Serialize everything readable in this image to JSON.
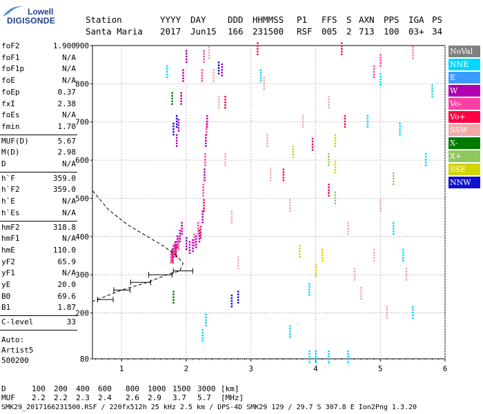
{
  "logo": {
    "top": "Lowell",
    "main": "DIGISONDE"
  },
  "header": {
    "row1": [
      "Station",
      "YYYY",
      "DAY",
      "DDD",
      "HHMMSS",
      "P1",
      "FFS",
      "S",
      "AXN",
      "PPS",
      "IGA",
      "PS"
    ],
    "row2": [
      "Santa Maria",
      "2017",
      "Jun15",
      "166",
      "231500",
      "RSF",
      "005",
      "2",
      "713",
      "100",
      "03+",
      "34"
    ]
  },
  "params": [
    {
      "label": "foF2",
      "value": "1.900"
    },
    {
      "label": "foF1",
      "value": "N/A"
    },
    {
      "label": "foF1p",
      "value": "N/A"
    },
    {
      "label": "foE",
      "value": "N/A"
    },
    {
      "label": "foEp",
      "value": "0.37"
    },
    {
      "label": "fxI",
      "value": "2.38"
    },
    {
      "label": "foEs",
      "value": "N/A"
    },
    {
      "label": "fmin",
      "value": "1.70"
    },
    {
      "label": "MUF(D)",
      "value": "5.67"
    },
    {
      "label": "M(D)",
      "value": "2.98"
    },
    {
      "label": "D",
      "value": "N/A"
    },
    {
      "label": "h`F",
      "value": "359.0"
    },
    {
      "label": "h`F2",
      "value": "359.0"
    },
    {
      "label": "h`E",
      "value": "N/A"
    },
    {
      "label": "h`Es",
      "value": "N/A"
    },
    {
      "label": "hmF2",
      "value": "318.8"
    },
    {
      "label": "hmF1",
      "value": "N/A"
    },
    {
      "label": "hmE",
      "value": "110.0"
    },
    {
      "label": "yF2",
      "value": "65.9"
    },
    {
      "label": "yF1",
      "value": "N/A"
    },
    {
      "label": "yE",
      "value": "20.0"
    },
    {
      "label": "B0",
      "value": "69.6"
    },
    {
      "label": "B1",
      "value": "1.87"
    },
    {
      "label": "C-level",
      "value": "33"
    }
  ],
  "auto": [
    "Auto:",
    "Artist5",
    "500200"
  ],
  "legend": [
    {
      "label": "NoVal",
      "color": "#808080"
    },
    {
      "label": "NNE",
      "color": "#00d8ff"
    },
    {
      "label": "E",
      "color": "#3b9cff"
    },
    {
      "label": "W",
      "color": "#b000b0"
    },
    {
      "label": "Vo-",
      "color": "#ff3fa5"
    },
    {
      "label": "Vo+",
      "color": "#ff0044"
    },
    {
      "label": "SSW",
      "color": "#f0a8a8"
    },
    {
      "label": "X-",
      "color": "#007a00"
    },
    {
      "label": "X+",
      "color": "#8ec85a"
    },
    {
      "label": "SSE",
      "color": "#d4d400"
    },
    {
      "label": "NNW",
      "color": "#1010d0"
    }
  ],
  "bottom": {
    "d_label": "D",
    "d_values": [
      "100",
      "200",
      "400",
      "600",
      "800",
      "1000",
      "1500",
      "3000",
      "[km]"
    ],
    "muf_label": "MUF",
    "muf_values": [
      "2.2",
      "2.2",
      "2.3",
      "2.4",
      "2.6",
      "2.9",
      "3.7",
      "5.7",
      "[MHz]"
    ],
    "footer": "SMK29_2017166231500.RSF / 220fx512h 25 kHz 2.5 km / DPS-4D SMK29 129 / 29.7 S 307.8 E Ion2Png 1.3.20"
  },
  "chart_data": {
    "type": "scatter",
    "title": "",
    "xlabel": "",
    "ylabel": "",
    "xlim": [
      0.55,
      6.0
    ],
    "ylim": [
      80,
      900
    ],
    "x_ticks": [
      1,
      2,
      3,
      4,
      5,
      6
    ],
    "y_ticks": [
      80,
      200,
      300,
      400,
      500,
      600,
      700,
      800,
      900
    ],
    "series": [
      {
        "name": "W",
        "color": "#b000b0",
        "points": [
          [
            1.78,
            350
          ],
          [
            1.8,
            360
          ],
          [
            1.83,
            370
          ],
          [
            1.86,
            385
          ],
          [
            1.9,
            400
          ],
          [
            1.93,
            420
          ],
          [
            2.0,
            380
          ],
          [
            2.05,
            370
          ],
          [
            2.1,
            375
          ],
          [
            2.15,
            385
          ],
          [
            2.2,
            400
          ],
          [
            2.25,
            450
          ],
          [
            2.28,
            560
          ],
          [
            2.3,
            650
          ],
          [
            2.32,
            700
          ],
          [
            1.85,
            650
          ],
          [
            1.88,
            690
          ],
          [
            1.92,
            760
          ],
          [
            1.95,
            820
          ],
          [
            2.0,
            870
          ],
          [
            2.55,
            835
          ]
        ]
      },
      {
        "name": "Vo-",
        "color": "#ff3fa5",
        "points": [
          [
            1.76,
            345
          ],
          [
            1.82,
            365
          ],
          [
            1.88,
            380
          ],
          [
            2.12,
            390
          ],
          [
            2.18,
            420
          ],
          [
            2.26,
            520
          ],
          [
            2.29,
            600
          ],
          [
            2.31,
            680
          ],
          [
            2.24,
            820
          ],
          [
            2.27,
            870
          ],
          [
            4.9,
            830
          ],
          [
            5.0,
            860
          ]
        ]
      },
      {
        "name": "Vo+",
        "color": "#ff0044",
        "points": [
          [
            1.79,
            345
          ],
          [
            1.84,
            360
          ],
          [
            2.22,
            410
          ],
          [
            2.27,
            480
          ],
          [
            2.6,
            750
          ],
          [
            3.1,
            890
          ],
          [
            4.4,
            890
          ],
          [
            5.5,
            880
          ],
          [
            4.45,
            700
          ],
          [
            3.95,
            640
          ],
          [
            3.5,
            560
          ],
          [
            4.2,
            520
          ]
        ]
      },
      {
        "name": "SSW",
        "color": "#f0a8a8",
        "points": [
          [
            2.35,
            880
          ],
          [
            2.42,
            820
          ],
          [
            2.5,
            750
          ],
          [
            2.6,
            600
          ],
          [
            2.7,
            450
          ],
          [
            2.8,
            330
          ],
          [
            3.2,
            800
          ],
          [
            3.25,
            650
          ],
          [
            3.3,
            560
          ],
          [
            3.6,
            480
          ],
          [
            3.8,
            700
          ],
          [
            4.2,
            750
          ],
          [
            4.5,
            420
          ],
          [
            4.6,
            300
          ],
          [
            4.7,
            250
          ],
          [
            4.9,
            350
          ],
          [
            5.0,
            480
          ],
          [
            5.1,
            200
          ],
          [
            5.4,
            300
          ],
          [
            5.5,
            880
          ]
        ]
      },
      {
        "name": "NNE",
        "color": "#00d8ff",
        "points": [
          [
            1.7,
            830
          ],
          [
            2.25,
            140
          ],
          [
            2.3,
            180
          ],
          [
            3.15,
            820
          ],
          [
            3.6,
            150
          ],
          [
            3.9,
            260
          ],
          [
            4.8,
            700
          ],
          [
            5.0,
            810
          ],
          [
            5.2,
            420
          ],
          [
            5.3,
            680
          ],
          [
            5.35,
            350
          ],
          [
            5.5,
            200
          ],
          [
            5.7,
            600
          ],
          [
            5.8,
            780
          ],
          [
            4.5,
            84
          ],
          [
            4.2,
            84
          ],
          [
            4.0,
            84
          ],
          [
            3.9,
            84
          ]
        ]
      },
      {
        "name": "NNW",
        "color": "#1010d0",
        "points": [
          [
            1.8,
            680
          ],
          [
            1.85,
            700
          ],
          [
            2.5,
            840
          ],
          [
            2.7,
            230
          ],
          [
            2.8,
            240
          ]
        ]
      },
      {
        "name": "SSE",
        "color": "#d4d400",
        "points": [
          [
            3.65,
            620
          ],
          [
            3.75,
            360
          ],
          [
            4.3,
            650
          ],
          [
            4.3,
            580
          ],
          [
            4.1,
            350
          ],
          [
            4.0,
            310
          ]
        ]
      },
      {
        "name": "X-",
        "color": "#007a00",
        "points": [
          [
            1.78,
            760
          ],
          [
            1.8,
            240
          ]
        ]
      },
      {
        "name": "X+",
        "color": "#8ec85a",
        "points": [
          [
            4.2,
            600
          ],
          [
            4.3,
            500
          ],
          [
            5.2,
            550
          ]
        ]
      }
    ],
    "profile": {
      "type": "line",
      "style": "dashed",
      "points": [
        [
          0.55,
          520
        ],
        [
          0.8,
          470
        ],
        [
          1.1,
          430
        ],
        [
          1.4,
          400
        ],
        [
          1.65,
          375
        ],
        [
          1.85,
          350
        ],
        [
          1.95,
          330
        ],
        [
          1.9,
          310
        ],
        [
          1.7,
          300
        ],
        [
          1.4,
          280
        ],
        [
          1.0,
          260
        ],
        [
          0.7,
          240
        ],
        [
          0.55,
          230
        ]
      ]
    },
    "error_bars": [
      [
        0.75,
        235,
        0.63,
        0.87
      ],
      [
        1.0,
        260,
        0.88,
        1.13
      ],
      [
        1.3,
        280,
        1.14,
        1.45
      ],
      [
        1.6,
        300,
        1.42,
        1.78
      ],
      [
        1.9,
        310,
        1.8,
        2.1
      ]
    ]
  }
}
